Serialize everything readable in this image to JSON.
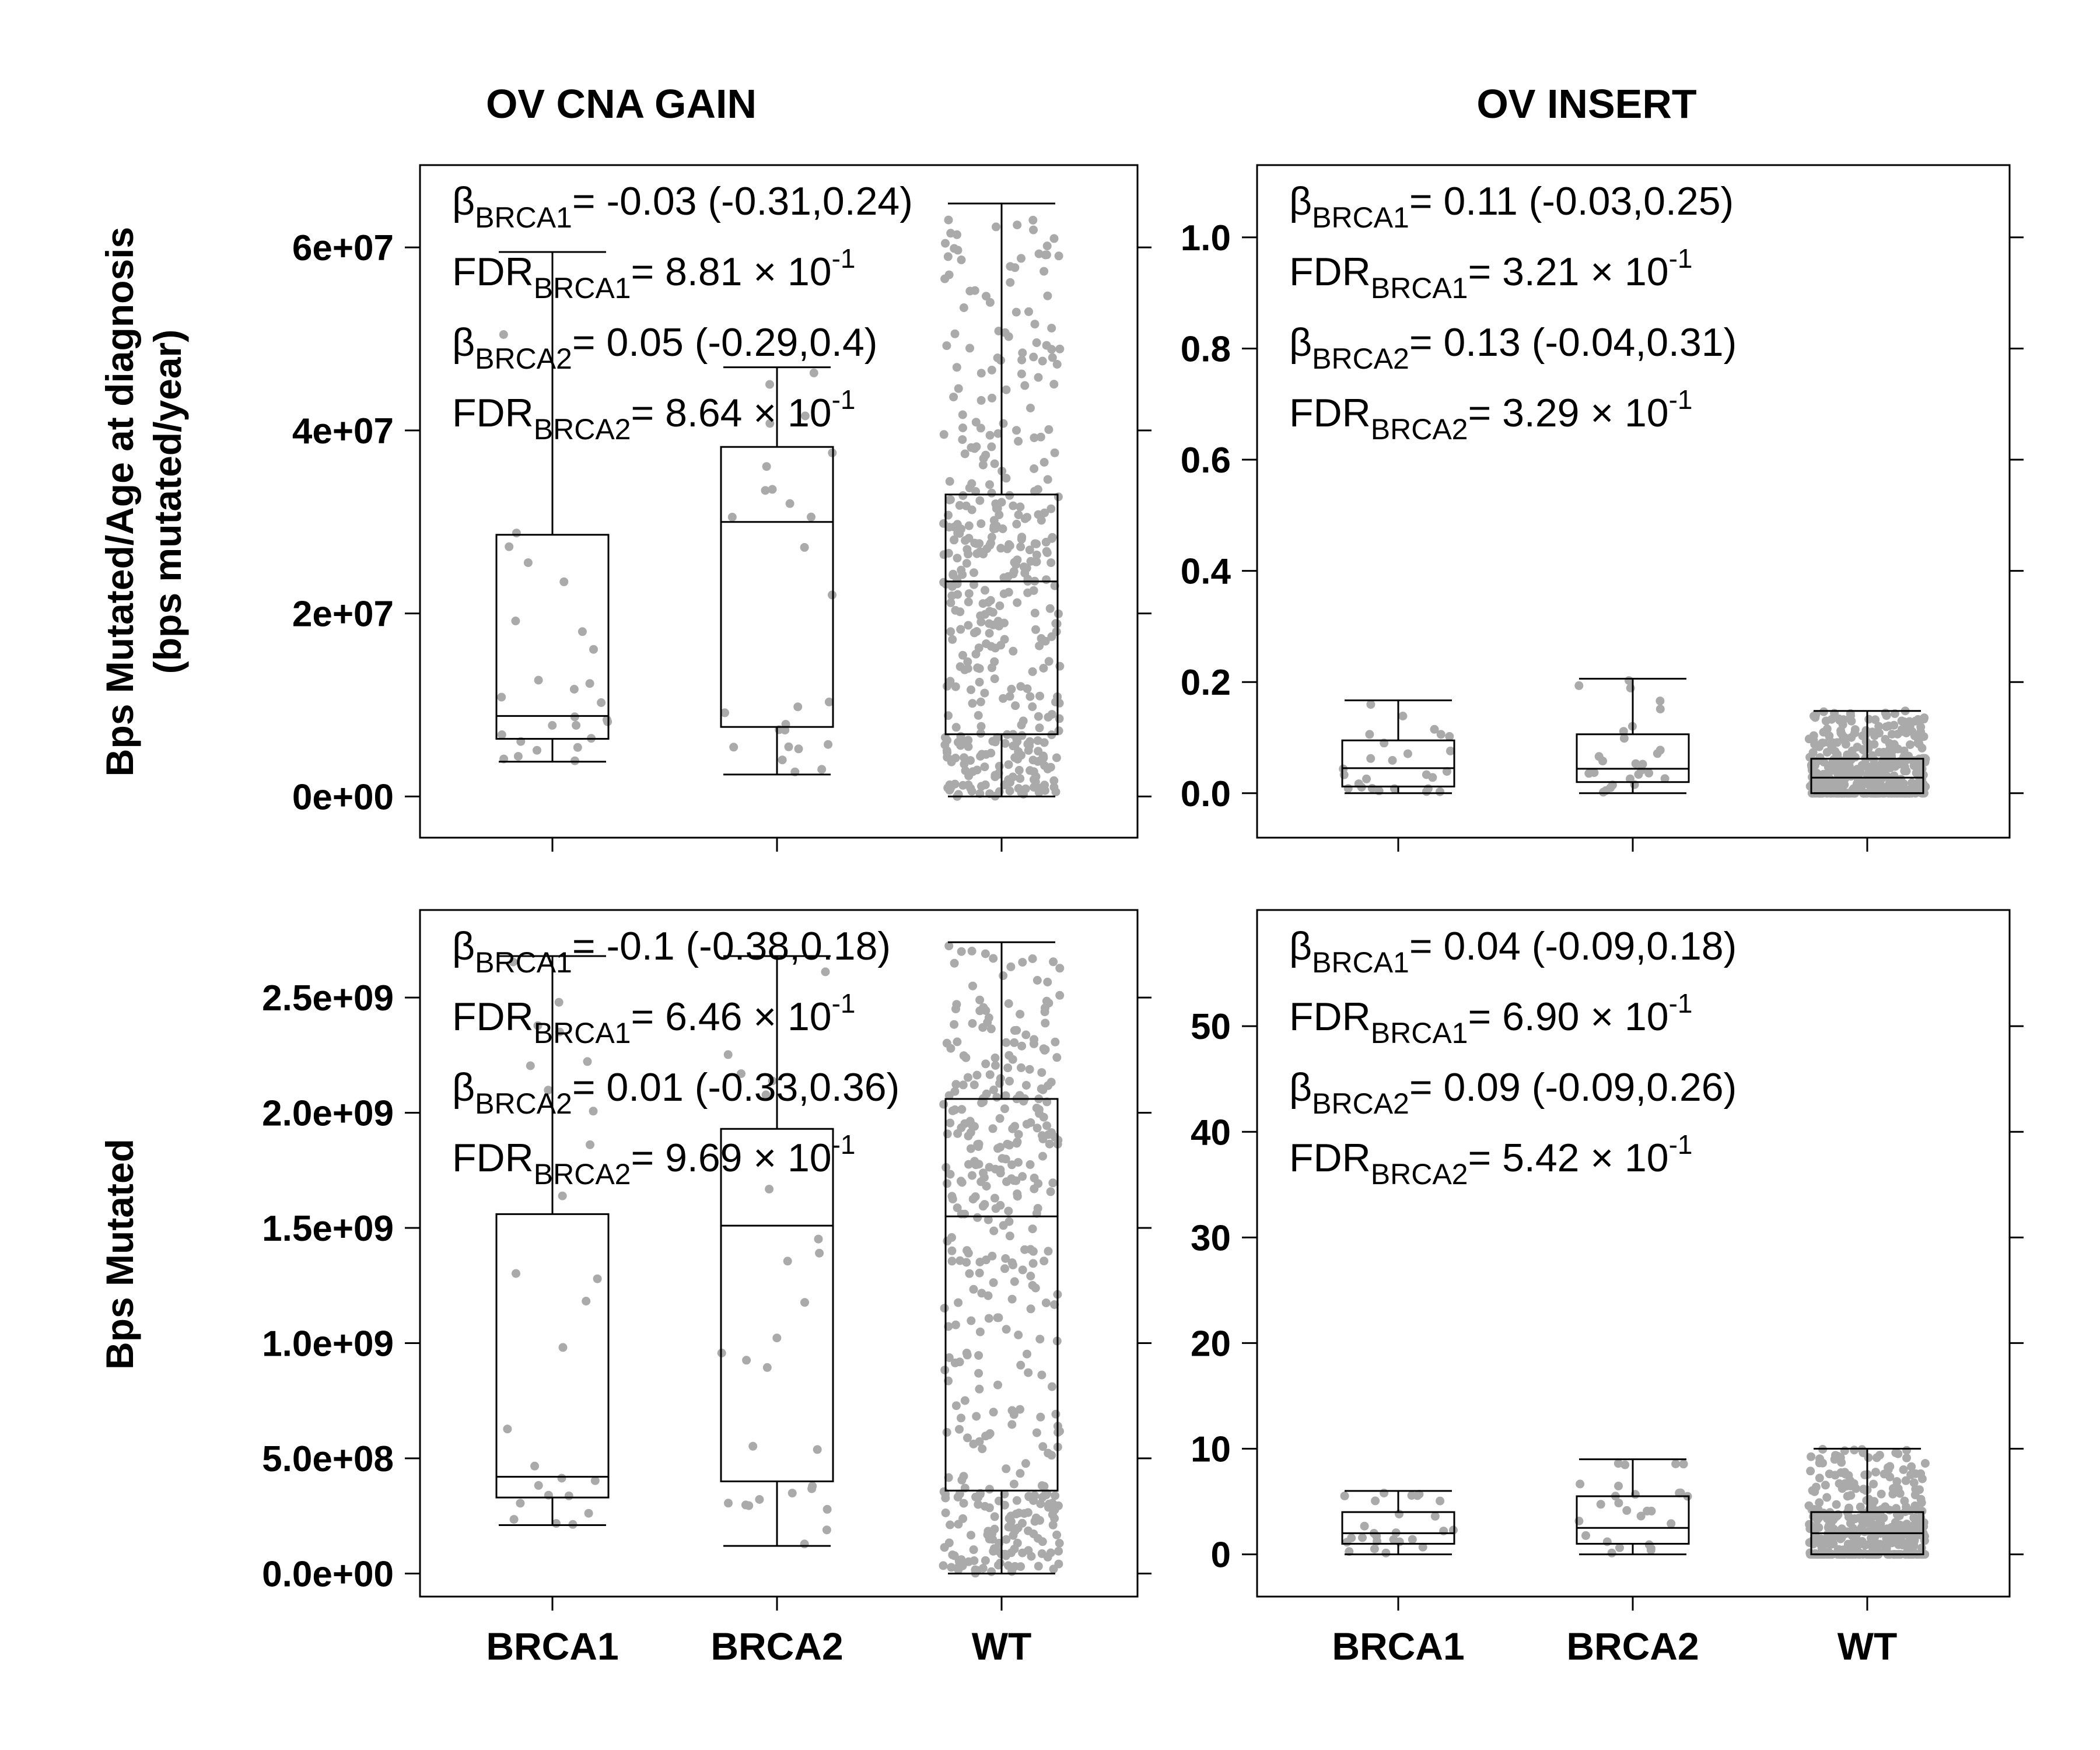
{
  "figure": {
    "col_titles": [
      "OV CNA GAIN",
      "OV INSERT"
    ],
    "row_ylabels": [
      [
        "Bps Mutated/Age at diagnosis",
        "(bps mutated/year)"
      ],
      [
        "Bps Mutated"
      ]
    ],
    "point_color": "#aaaaaa"
  },
  "chart_data": [
    {
      "type": "box",
      "panel": "top-left",
      "title": "OV CNA GAIN",
      "ylabel": "Bps Mutated/Age at diagnosis (bps mutated/year)",
      "categories": [
        "BRCA1",
        "BRCA2",
        "WT"
      ],
      "ylim": [
        -4500000,
        69000000
      ],
      "yticks": [
        0,
        20000000,
        40000000,
        60000000
      ],
      "ytick_labels": [
        "0e+00",
        "2e+07",
        "4e+07",
        "6e+07"
      ],
      "boxes": [
        {
          "category": "BRCA1",
          "whisker_low": 3800000,
          "q1": 6300000,
          "median": 8800000,
          "q3": 28600000,
          "whisker_high": 59500000
        },
        {
          "category": "BRCA2",
          "whisker_low": 2400000,
          "q1": 7600000,
          "median": 30000000,
          "q3": 38200000,
          "whisker_high": 46900000
        },
        {
          "category": "WT",
          "whisker_low": 0,
          "q1": 6800000,
          "median": 23500000,
          "q3": 33000000,
          "whisker_high": 64800000
        }
      ],
      "annotations": [
        {
          "sym": "β",
          "sub": "BRCA1",
          "text": "= -0.03 (-0.31,0.24)"
        },
        {
          "sym": "FDR",
          "sub": "BRCA1",
          "text": "= 8.81 × 10",
          "sup": "-1"
        },
        {
          "sym": "β",
          "sub": "BRCA2",
          "text": "= 0.05 (-0.29,0.4)"
        },
        {
          "sym": "FDR",
          "sub": "BRCA2",
          "text": "= 8.64 × 10",
          "sup": "-1"
        }
      ]
    },
    {
      "type": "box",
      "panel": "top-right",
      "title": "OV INSERT",
      "categories": [
        "BRCA1",
        "BRCA2",
        "WT"
      ],
      "ylim": [
        -0.08,
        1.13
      ],
      "yticks": [
        0,
        0.2,
        0.4,
        0.6,
        0.8,
        1.0
      ],
      "ytick_labels": [
        "0.0",
        "0.2",
        "0.4",
        "0.6",
        "0.8",
        "1.0"
      ],
      "boxes": [
        {
          "category": "BRCA1",
          "whisker_low": 0,
          "q1": 0.012,
          "median": 0.045,
          "q3": 0.095,
          "whisker_high": 0.167
        },
        {
          "category": "BRCA2",
          "whisker_low": 0,
          "q1": 0.02,
          "median": 0.044,
          "q3": 0.106,
          "whisker_high": 0.206
        },
        {
          "category": "WT",
          "whisker_low": 0,
          "q1": 0,
          "median": 0.028,
          "q3": 0.062,
          "whisker_high": 0.148
        }
      ],
      "annotations": [
        {
          "sym": "β",
          "sub": "BRCA1",
          "text": "= 0.11 (-0.03,0.25)"
        },
        {
          "sym": "FDR",
          "sub": "BRCA1",
          "text": "= 3.21 × 10",
          "sup": "-1"
        },
        {
          "sym": "β",
          "sub": "BRCA2",
          "text": "= 0.13 (-0.04,0.31)"
        },
        {
          "sym": "FDR",
          "sub": "BRCA2",
          "text": "= 3.29 × 10",
          "sup": "-1"
        }
      ]
    },
    {
      "type": "box",
      "panel": "bottom-left",
      "ylabel": "Bps Mutated",
      "categories": [
        "BRCA1",
        "BRCA2",
        "WT"
      ],
      "ylim": [
        -100000000,
        2880000000
      ],
      "yticks": [
        0,
        500000000,
        1000000000,
        1500000000,
        2000000000,
        2500000000
      ],
      "ytick_labels": [
        "0.0e+00",
        "5.0e+08",
        "1.0e+09",
        "1.5e+09",
        "2.0e+09",
        "2.5e+09"
      ],
      "boxes": [
        {
          "category": "BRCA1",
          "whisker_low": 210000000,
          "q1": 330000000,
          "median": 420000000,
          "q3": 1560000000,
          "whisker_high": 2680000000
        },
        {
          "category": "BRCA2",
          "whisker_low": 120000000,
          "q1": 400000000,
          "median": 1510000000,
          "q3": 1930000000,
          "whisker_high": 2680000000
        },
        {
          "category": "WT",
          "whisker_low": 0,
          "q1": 360000000,
          "median": 1550000000,
          "q3": 2060000000,
          "whisker_high": 2740000000
        }
      ],
      "annotations": [
        {
          "sym": "β",
          "sub": "BRCA1",
          "text": "= -0.1 (-0.38,0.18)"
        },
        {
          "sym": "FDR",
          "sub": "BRCA1",
          "text": "= 6.46 × 10",
          "sup": "-1"
        },
        {
          "sym": "β",
          "sub": "BRCA2",
          "text": "= 0.01 (-0.33,0.36)"
        },
        {
          "sym": "FDR",
          "sub": "BRCA2",
          "text": "= 9.69 × 10",
          "sup": "-1"
        }
      ]
    },
    {
      "type": "box",
      "panel": "bottom-right",
      "categories": [
        "BRCA1",
        "BRCA2",
        "WT"
      ],
      "ylim": [
        -4,
        61
      ],
      "yticks": [
        0,
        10,
        20,
        30,
        40,
        50
      ],
      "ytick_labels": [
        "0",
        "10",
        "20",
        "30",
        "40",
        "50"
      ],
      "boxes": [
        {
          "category": "BRCA1",
          "whisker_low": 0,
          "q1": 1,
          "median": 2,
          "q3": 4,
          "whisker_high": 6
        },
        {
          "category": "BRCA2",
          "whisker_low": 0,
          "q1": 1,
          "median": 2.5,
          "q3": 5.5,
          "whisker_high": 9
        },
        {
          "category": "WT",
          "whisker_low": 0,
          "q1": 0,
          "median": 2,
          "q3": 4,
          "whisker_high": 10
        }
      ],
      "annotations": [
        {
          "sym": "β",
          "sub": "BRCA1",
          "text": "= 0.04 (-0.09,0.18)"
        },
        {
          "sym": "FDR",
          "sub": "BRCA1",
          "text": "= 6.90 × 10",
          "sup": "-1"
        },
        {
          "sym": "β",
          "sub": "BRCA2",
          "text": "= 0.09 (-0.09,0.26)"
        },
        {
          "sym": "FDR",
          "sub": "BRCA2",
          "text": "= 5.42 × 10",
          "sup": "-1"
        }
      ]
    }
  ]
}
